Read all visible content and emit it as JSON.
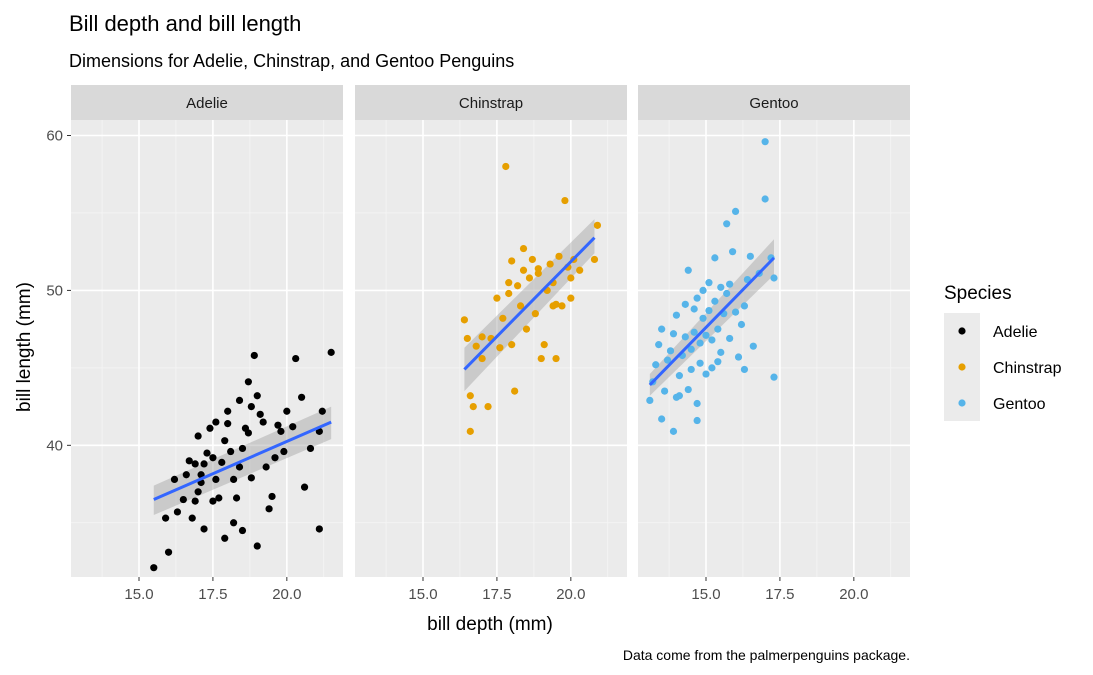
{
  "chart_data": {
    "type": "scatter",
    "title": "Bill depth and bill length",
    "subtitle": "Dimensions for Adelie, Chinstrap, and Gentoo Penguins",
    "xlabel": "bill depth (mm)",
    "ylabel": "bill length (mm)",
    "caption": "Data come from the palmerpenguins package.",
    "xlim": [
      12.7,
      21.9
    ],
    "ylim": [
      31.5,
      61.0
    ],
    "xticks": [
      15,
      17.5,
      20
    ],
    "xtick_labels": [
      "15.0",
      "17.5",
      "20.0"
    ],
    "yticks": [
      40,
      50,
      60
    ],
    "ytick_labels": [
      "40",
      "50",
      "60"
    ],
    "grid": true,
    "legend": {
      "title": "Species",
      "position": "right",
      "items": [
        {
          "label": "Adelie",
          "color": "#000000"
        },
        {
          "label": "Chinstrap",
          "color": "#E69F00"
        },
        {
          "label": "Gentoo",
          "color": "#56B4E9"
        }
      ]
    },
    "panels": [
      {
        "facet": "Adelie",
        "color": "#000000",
        "trend": {
          "x": [
            15.5,
            21.5
          ],
          "y": [
            36.5,
            41.5
          ],
          "se_lower": [
            35.5,
            40.4
          ],
          "se_upper": [
            37.4,
            42.5
          ]
        },
        "points": [
          [
            15.5,
            32.1
          ],
          [
            16.0,
            33.1
          ],
          [
            15.9,
            35.3
          ],
          [
            16.3,
            35.7
          ],
          [
            16.5,
            36.5
          ],
          [
            16.8,
            35.3
          ],
          [
            16.9,
            36.4
          ],
          [
            17.0,
            37.0
          ],
          [
            17.1,
            38.1
          ],
          [
            17.2,
            38.8
          ],
          [
            17.3,
            39.5
          ],
          [
            17.0,
            40.6
          ],
          [
            17.4,
            41.1
          ],
          [
            17.5,
            39.2
          ],
          [
            17.6,
            37.8
          ],
          [
            17.7,
            36.6
          ],
          [
            17.8,
            38.9
          ],
          [
            17.9,
            40.3
          ],
          [
            18.0,
            41.4
          ],
          [
            18.1,
            39.6
          ],
          [
            18.2,
            37.8
          ],
          [
            18.3,
            36.6
          ],
          [
            18.4,
            38.6
          ],
          [
            18.5,
            39.8
          ],
          [
            18.6,
            41.1
          ],
          [
            18.7,
            40.8
          ],
          [
            18.8,
            42.5
          ],
          [
            18.9,
            45.8
          ],
          [
            19.0,
            43.2
          ],
          [
            19.1,
            42.0
          ],
          [
            19.2,
            41.5
          ],
          [
            19.3,
            38.6
          ],
          [
            19.4,
            35.9
          ],
          [
            19.5,
            36.7
          ],
          [
            19.6,
            39.2
          ],
          [
            19.8,
            40.9
          ],
          [
            20.0,
            42.2
          ],
          [
            20.2,
            41.2
          ],
          [
            20.3,
            45.6
          ],
          [
            20.5,
            43.1
          ],
          [
            20.6,
            37.3
          ],
          [
            20.8,
            39.8
          ],
          [
            21.1,
            40.9
          ],
          [
            21.2,
            42.2
          ],
          [
            21.5,
            46.0
          ],
          [
            21.1,
            34.6
          ],
          [
            19.0,
            33.5
          ],
          [
            17.9,
            34.0
          ],
          [
            17.2,
            34.6
          ],
          [
            18.5,
            34.5
          ],
          [
            16.6,
            38.1
          ],
          [
            16.9,
            38.8
          ],
          [
            17.6,
            41.5
          ],
          [
            18.0,
            42.2
          ],
          [
            18.4,
            42.9
          ],
          [
            18.7,
            44.1
          ],
          [
            19.7,
            41.3
          ],
          [
            19.9,
            39.6
          ],
          [
            17.5,
            36.4
          ],
          [
            18.2,
            35.0
          ],
          [
            17.1,
            37.6
          ],
          [
            16.2,
            37.8
          ],
          [
            16.7,
            39.0
          ],
          [
            18.8,
            37.9
          ]
        ]
      },
      {
        "facet": "Chinstrap",
        "color": "#E69F00",
        "trend": {
          "x": [
            16.4,
            20.8
          ],
          "y": [
            44.9,
            53.4
          ],
          "se_lower": [
            43.5,
            52.4
          ],
          "se_upper": [
            46.3,
            54.6
          ]
        },
        "points": [
          [
            16.4,
            48.1
          ],
          [
            16.5,
            46.9
          ],
          [
            16.6,
            43.2
          ],
          [
            16.7,
            42.5
          ],
          [
            16.6,
            40.9
          ],
          [
            16.8,
            46.4
          ],
          [
            17.0,
            45.6
          ],
          [
            17.2,
            42.5
          ],
          [
            17.3,
            46.9
          ],
          [
            17.5,
            49.5
          ],
          [
            17.6,
            46.3
          ],
          [
            17.8,
            58.0
          ],
          [
            17.9,
            50.5
          ],
          [
            18.0,
            46.5
          ],
          [
            18.1,
            43.5
          ],
          [
            18.2,
            50.3
          ],
          [
            18.3,
            49.0
          ],
          [
            18.4,
            51.3
          ],
          [
            18.5,
            47.5
          ],
          [
            18.6,
            50.8
          ],
          [
            18.7,
            52.0
          ],
          [
            18.8,
            48.5
          ],
          [
            18.9,
            51.1
          ],
          [
            19.0,
            45.6
          ],
          [
            19.1,
            46.5
          ],
          [
            19.2,
            50.0
          ],
          [
            19.3,
            51.7
          ],
          [
            19.4,
            50.5
          ],
          [
            19.5,
            49.1
          ],
          [
            19.6,
            52.2
          ],
          [
            19.7,
            49.0
          ],
          [
            19.8,
            55.8
          ],
          [
            19.9,
            51.5
          ],
          [
            20.0,
            50.8
          ],
          [
            20.1,
            52.0
          ],
          [
            20.3,
            51.3
          ],
          [
            20.8,
            52.0
          ],
          [
            20.9,
            54.2
          ],
          [
            18.0,
            51.9
          ],
          [
            18.4,
            52.7
          ],
          [
            17.9,
            49.8
          ],
          [
            17.0,
            47.0
          ],
          [
            17.7,
            48.2
          ],
          [
            19.5,
            45.6
          ],
          [
            18.9,
            51.4
          ],
          [
            20.0,
            49.5
          ],
          [
            19.4,
            49.0
          ]
        ]
      },
      {
        "facet": "Gentoo",
        "color": "#56B4E9",
        "trend": {
          "x": [
            13.1,
            17.3
          ],
          "y": [
            43.9,
            52.1
          ],
          "se_lower": [
            43.2,
            51.0
          ],
          "se_upper": [
            44.6,
            53.3
          ]
        },
        "points": [
          [
            13.1,
            42.9
          ],
          [
            13.2,
            44.1
          ],
          [
            13.3,
            45.2
          ],
          [
            13.4,
            46.5
          ],
          [
            13.5,
            47.5
          ],
          [
            13.5,
            41.7
          ],
          [
            13.6,
            43.5
          ],
          [
            13.7,
            45.5
          ],
          [
            13.8,
            46.1
          ],
          [
            13.9,
            47.2
          ],
          [
            14.0,
            48.4
          ],
          [
            14.0,
            43.1
          ],
          [
            14.1,
            44.5
          ],
          [
            14.2,
            45.8
          ],
          [
            14.3,
            47.0
          ],
          [
            14.3,
            49.1
          ],
          [
            14.4,
            51.3
          ],
          [
            14.4,
            43.6
          ],
          [
            14.5,
            44.9
          ],
          [
            14.5,
            46.2
          ],
          [
            14.6,
            47.3
          ],
          [
            14.6,
            48.8
          ],
          [
            14.7,
            49.5
          ],
          [
            14.7,
            42.7
          ],
          [
            14.8,
            45.3
          ],
          [
            14.8,
            46.6
          ],
          [
            14.9,
            48.2
          ],
          [
            14.9,
            50.0
          ],
          [
            15.0,
            44.6
          ],
          [
            15.0,
            47.1
          ],
          [
            15.1,
            48.7
          ],
          [
            15.1,
            50.5
          ],
          [
            15.2,
            45.0
          ],
          [
            15.2,
            46.8
          ],
          [
            15.3,
            49.3
          ],
          [
            15.3,
            52.1
          ],
          [
            15.4,
            45.4
          ],
          [
            15.4,
            47.5
          ],
          [
            15.5,
            50.2
          ],
          [
            15.5,
            46.0
          ],
          [
            15.6,
            48.5
          ],
          [
            15.7,
            49.8
          ],
          [
            15.7,
            54.3
          ],
          [
            15.8,
            46.9
          ],
          [
            15.8,
            50.4
          ],
          [
            15.9,
            52.5
          ],
          [
            16.0,
            55.1
          ],
          [
            16.0,
            48.6
          ],
          [
            16.1,
            45.7
          ],
          [
            16.2,
            47.8
          ],
          [
            16.3,
            49.0
          ],
          [
            16.4,
            50.7
          ],
          [
            16.5,
            52.2
          ],
          [
            16.6,
            46.4
          ],
          [
            16.8,
            51.1
          ],
          [
            17.0,
            59.6
          ],
          [
            17.0,
            55.9
          ],
          [
            17.2,
            52.1
          ],
          [
            17.3,
            50.8
          ],
          [
            17.3,
            44.4
          ],
          [
            13.9,
            40.9
          ],
          [
            14.7,
            41.6
          ],
          [
            16.3,
            44.9
          ],
          [
            14.1,
            43.2
          ]
        ]
      }
    ]
  }
}
